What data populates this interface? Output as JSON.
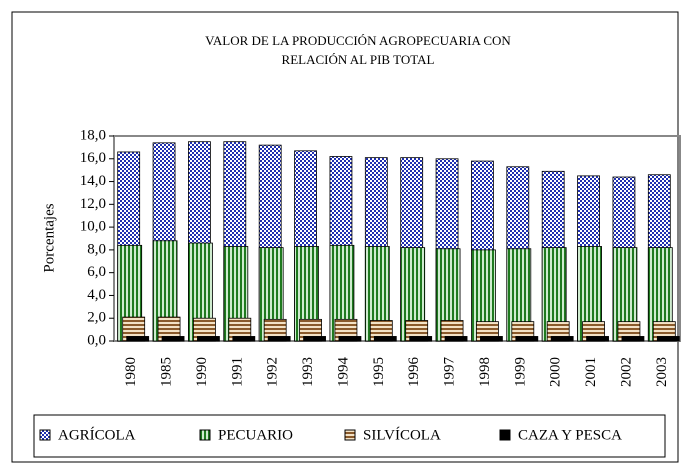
{
  "chart_data": {
    "type": "overlap_bar",
    "title": "VALOR DE LA PRODUCCIÓN AGROPECUARIA CON",
    "subtitle": "RELACIÓN AL PIB TOTAL",
    "y_label": "Porcentajes",
    "categories": [
      "1980",
      "1985",
      "1990",
      "1991",
      "1992",
      "1993",
      "1994",
      "1995",
      "1996",
      "1997",
      "1998",
      "1999",
      "2000",
      "2001",
      "2002",
      "2003"
    ],
    "series": [
      {
        "name": "AGRÍCOLA",
        "color": "#1f2fb0",
        "values": [
          16.6,
          17.4,
          17.5,
          17.5,
          17.2,
          16.7,
          16.2,
          16.1,
          16.1,
          16.0,
          15.8,
          15.3,
          14.9,
          14.5,
          14.4,
          14.6
        ]
      },
      {
        "name": "PECUARIO",
        "color": "#1f7a1f",
        "values": [
          8.4,
          8.8,
          8.6,
          8.3,
          8.2,
          8.3,
          8.4,
          8.3,
          8.2,
          8.1,
          8.0,
          8.1,
          8.2,
          8.3,
          8.2,
          8.2
        ]
      },
      {
        "name": "SILVÍCOLA",
        "color": "#8a5a2b",
        "values": [
          2.1,
          2.1,
          2.0,
          2.0,
          1.9,
          1.9,
          1.9,
          1.8,
          1.8,
          1.8,
          1.7,
          1.7,
          1.7,
          1.7,
          1.7,
          1.7
        ]
      },
      {
        "name": "CAZA Y PESCA",
        "color": "#000000",
        "values": [
          0.4,
          0.4,
          0.4,
          0.4,
          0.4,
          0.4,
          0.4,
          0.4,
          0.4,
          0.4,
          0.4,
          0.4,
          0.4,
          0.4,
          0.4,
          0.4
        ]
      }
    ],
    "ylim": [
      0,
      18
    ],
    "yticks": [
      {
        "value": 0,
        "label": "0,0"
      },
      {
        "value": 2,
        "label": "2,0"
      },
      {
        "value": 4,
        "label": "4,0"
      },
      {
        "value": 6,
        "label": "6,0"
      },
      {
        "value": 8,
        "label": "8,0"
      },
      {
        "value": 10,
        "label": "10,0"
      },
      {
        "value": 12,
        "label": "12,0"
      },
      {
        "value": 14,
        "label": "14,0"
      },
      {
        "value": 16,
        "label": "16,0"
      },
      {
        "value": 18,
        "label": "18,0"
      }
    ],
    "grid": false
  }
}
